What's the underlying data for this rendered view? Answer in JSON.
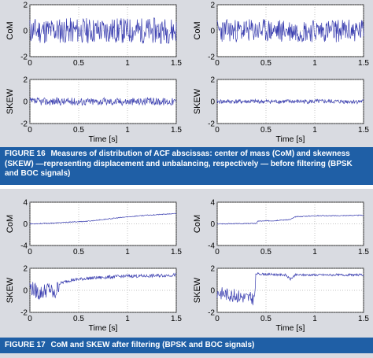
{
  "figures": [
    {
      "id": "fig16",
      "caption_tag": "FIGURE 16",
      "caption_text": "Measures of distribution of ACF abscissas: center of mass (CoM) and skewness (SKEW) —representing displacement and unbalancing, respectively — before filtering (BPSK and BOC signals)"
    },
    {
      "id": "fig17",
      "caption_tag": "FIGURE 17",
      "caption_text": "CoM and SKEW after filtering (BPSK and BOC signals)"
    }
  ],
  "colors": {
    "panel_bg": "#d9dbe1",
    "caption_bg": "#1f5fa6",
    "trace": "#3b3fb0"
  },
  "chart_data": [
    {
      "figure": "FIGURE 16",
      "signal": "BPSK",
      "type": "line",
      "ylabel": "CoM",
      "xlabel": "",
      "xlim": [
        0,
        1.5
      ],
      "ylim": [
        -2,
        2
      ],
      "xticks": [
        "0",
        "0.5",
        "1",
        "1.5"
      ],
      "yticks": [
        "2",
        "0",
        "-2"
      ],
      "series": [
        {
          "pattern": "noise",
          "mean": 0,
          "amplitude": 1.0,
          "seed": 11
        }
      ]
    },
    {
      "figure": "FIGURE 16",
      "signal": "BOC",
      "type": "line",
      "ylabel": "CoM",
      "xlabel": "",
      "xlim": [
        0,
        1.5
      ],
      "ylim": [
        -2,
        2
      ],
      "xticks": [
        "0",
        "0.5",
        "1",
        "1.5"
      ],
      "yticks": [
        "2",
        "0",
        "-2"
      ],
      "series": [
        {
          "pattern": "noise",
          "mean": 0,
          "amplitude": 0.9,
          "seed": 23
        }
      ]
    },
    {
      "figure": "FIGURE 16",
      "signal": "BPSK",
      "type": "line",
      "ylabel": "SKEW",
      "xlabel": "Time [s]",
      "xlim": [
        0,
        1.5
      ],
      "ylim": [
        -2,
        2
      ],
      "xticks": [
        "0",
        "0.5",
        "1",
        "1.5"
      ],
      "yticks": [
        "2",
        "0",
        "-2"
      ],
      "series": [
        {
          "pattern": "noise",
          "mean": 0,
          "amplitude": 0.35,
          "seed": 37
        }
      ]
    },
    {
      "figure": "FIGURE 16",
      "signal": "BOC",
      "type": "line",
      "ylabel": "SKEW",
      "xlabel": "Time [s]",
      "xlim": [
        0,
        1.5
      ],
      "ylim": [
        -2,
        2
      ],
      "xticks": [
        "0",
        "0.5",
        "1",
        "1.5"
      ],
      "yticks": [
        "2",
        "0",
        "-2"
      ],
      "series": [
        {
          "pattern": "noise",
          "mean": 0,
          "amplitude": 0.2,
          "seed": 41
        }
      ]
    },
    {
      "figure": "FIGURE 17",
      "signal": "BPSK",
      "type": "line",
      "ylabel": "CoM",
      "xlabel": "",
      "xlim": [
        0,
        1.5
      ],
      "ylim": [
        -4,
        4
      ],
      "xticks": [
        "0",
        "0.5",
        "1",
        "1.5"
      ],
      "yticks": [
        "4",
        "0",
        "-4"
      ],
      "series": [
        {
          "pattern": "trend",
          "points": [
            [
              0,
              0.0
            ],
            [
              0.2,
              0.1
            ],
            [
              0.4,
              0.3
            ],
            [
              0.6,
              0.5
            ],
            [
              0.8,
              0.9
            ],
            [
              1.0,
              1.3
            ],
            [
              1.2,
              1.6
            ],
            [
              1.5,
              1.9
            ]
          ],
          "noise": 0.08,
          "seed": 53
        }
      ]
    },
    {
      "figure": "FIGURE 17",
      "signal": "BOC",
      "type": "line",
      "ylabel": "CoM",
      "xlabel": "",
      "xlim": [
        0,
        1.5
      ],
      "ylim": [
        -4,
        4
      ],
      "xticks": [
        "0",
        "0.5",
        "1",
        "1.5"
      ],
      "yticks": [
        "4",
        "0",
        "-4"
      ],
      "series": [
        {
          "pattern": "trend",
          "points": [
            [
              0,
              0.0
            ],
            [
              0.3,
              0.05
            ],
            [
              0.4,
              0.1
            ],
            [
              0.42,
              0.5
            ],
            [
              0.6,
              0.6
            ],
            [
              0.75,
              0.8
            ],
            [
              0.8,
              1.3
            ],
            [
              1.0,
              1.5
            ],
            [
              1.2,
              1.5
            ],
            [
              1.5,
              1.6
            ]
          ],
          "noise": 0.08,
          "seed": 67
        }
      ]
    },
    {
      "figure": "FIGURE 17",
      "signal": "BPSK",
      "type": "line",
      "ylabel": "SKEW",
      "xlabel": "Time [s]",
      "xlim": [
        0,
        1.5
      ],
      "ylim": [
        -2,
        2
      ],
      "xticks": [
        "0",
        "0.5",
        "1",
        "1.5"
      ],
      "yticks": [
        "2",
        "0",
        "-2"
      ],
      "series": [
        {
          "pattern": "trend",
          "points": [
            [
              0,
              0.3
            ],
            [
              0.1,
              -0.3
            ],
            [
              0.2,
              0.2
            ],
            [
              0.25,
              -0.5
            ],
            [
              0.3,
              0.6
            ],
            [
              0.4,
              0.9
            ],
            [
              0.6,
              1.1
            ],
            [
              0.8,
              1.2
            ],
            [
              1.0,
              1.3
            ],
            [
              1.2,
              1.3
            ],
            [
              1.5,
              1.4
            ]
          ],
          "noise": 0.15,
          "seed": 79,
          "noisy_until": 0.3,
          "early_noise": 0.7
        }
      ]
    },
    {
      "figure": "FIGURE 17",
      "signal": "BOC",
      "type": "line",
      "ylabel": "SKEW",
      "xlabel": "Time [s]",
      "xlim": [
        0,
        1.5
      ],
      "ylim": [
        -2,
        2
      ],
      "xticks": [
        "0",
        "0.5",
        "1",
        "1.5"
      ],
      "yticks": [
        "2",
        "0",
        "-2"
      ],
      "series": [
        {
          "pattern": "trend",
          "points": [
            [
              0,
              -0.2
            ],
            [
              0.2,
              -0.5
            ],
            [
              0.38,
              -0.8
            ],
            [
              0.4,
              1.5
            ],
            [
              0.7,
              1.4
            ],
            [
              0.75,
              1.0
            ],
            [
              0.8,
              1.4
            ],
            [
              1.0,
              1.4
            ],
            [
              1.5,
              1.4
            ]
          ],
          "noise": 0.1,
          "seed": 83,
          "noisy_until": 0.4,
          "early_noise": 0.6
        }
      ]
    }
  ]
}
